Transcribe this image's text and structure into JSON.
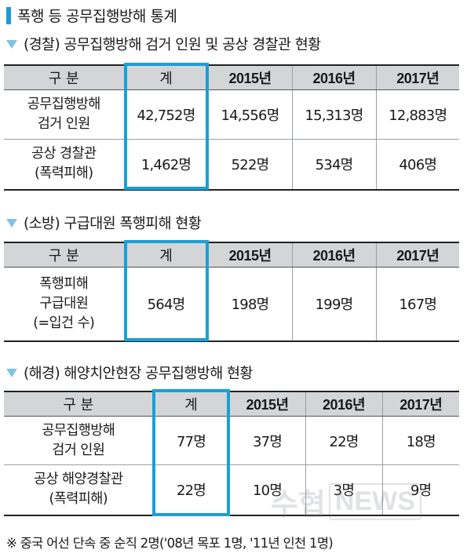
{
  "title": "폭행 등 공무집행방해 통계",
  "header": {
    "category": "구 분",
    "total": "계",
    "years": [
      "2015년",
      "2016년",
      "2017년"
    ]
  },
  "sections": [
    {
      "title": "(경찰) 공무집행방해 검거 인원 및 공상 경찰관 현황",
      "rows": [
        {
          "label": [
            "공무집행방해",
            "검거 인원"
          ],
          "total": "42,752명",
          "values": [
            "14,556명",
            "15,313명",
            "12,883명"
          ]
        },
        {
          "label": [
            "공상 경찰관",
            "(폭력피해)"
          ],
          "total": "1,462명",
          "values": [
            "522명",
            "534명",
            "406명"
          ]
        }
      ]
    },
    {
      "title": "(소방) 구급대원 폭행피해 현황",
      "rows": [
        {
          "label": [
            "폭행피해",
            "구급대원",
            "(=입건 수)"
          ],
          "total": "564명",
          "values": [
            "198명",
            "199명",
            "167명"
          ]
        }
      ]
    },
    {
      "title": "(해경) 해양치안현장 공무집행방해 현황",
      "rows": [
        {
          "label": [
            "공무집행방해",
            "검거 인원"
          ],
          "total": "77명",
          "values": [
            "37명",
            "22명",
            "18명"
          ]
        },
        {
          "label": [
            "공상 해양경찰관",
            "(폭력피해)"
          ],
          "total": "22명",
          "values": [
            "10명",
            "3명",
            "9명"
          ]
        }
      ]
    }
  ],
  "footnote": "※ 중국 어선 단속 중 순직 2명('08년 목포 1명, '11년 인천 1명)",
  "watermark": {
    "text_ko": "수협",
    "text_en": "NEWS"
  },
  "colors": {
    "accent": "#1b9fd6",
    "header_bg": "#d3d5d7",
    "triangle": "#7ec4e6"
  }
}
